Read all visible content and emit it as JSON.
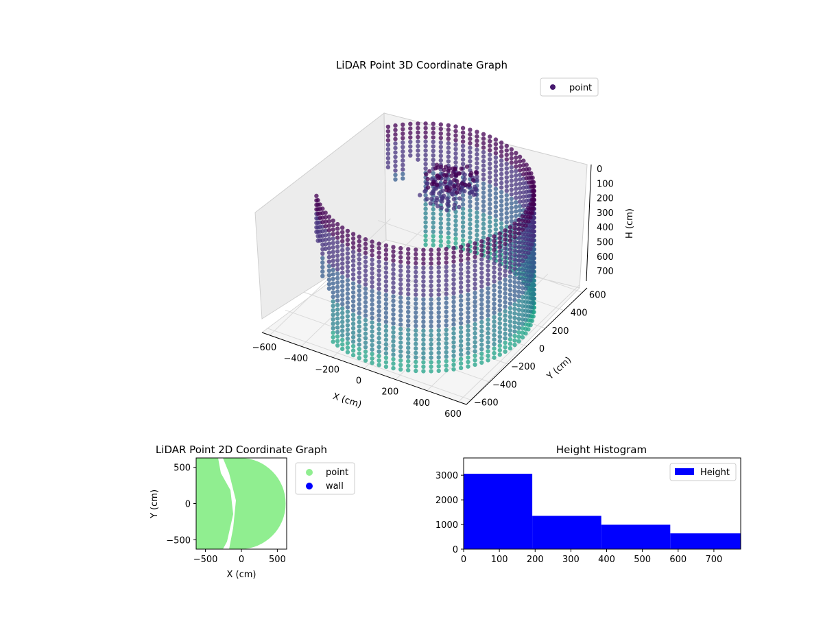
{
  "chart_data": [
    {
      "type": "scatter",
      "projection": "3d",
      "title": "LiDAR Point 3D Coordinate Graph",
      "xlabel": "X (cm)",
      "ylabel": "Y (cm)",
      "zlabel": "H (cm)",
      "xlim": [
        -650,
        650
      ],
      "ylim": [
        -650,
        650
      ],
      "zlim": [
        0,
        770
      ],
      "z_inverted": true,
      "xticks": [
        -600,
        -400,
        -200,
        0,
        200,
        400,
        600
      ],
      "yticks": [
        -600,
        -400,
        -200,
        0,
        200,
        400,
        600
      ],
      "zticks": [
        0,
        100,
        200,
        300,
        400,
        500,
        600,
        700
      ],
      "colormap": "viridis",
      "grid": true,
      "legend": {
        "position": "top-right",
        "entries": [
          {
            "label": "point",
            "color": "#46186e"
          }
        ]
      },
      "series": [
        {
          "name": "point",
          "shape": "cylindrical wall, radius ≈ 600 cm, heights 0–770 cm, open toward −X",
          "colors": [
            "#440154",
            "#3b528b",
            "#21918c",
            "#5ec962"
          ]
        }
      ]
    },
    {
      "type": "scatter",
      "title": "LiDAR Point 2D Coordinate Graph",
      "xlabel": "X (cm)",
      "ylabel": "Y (cm)",
      "xlim": [
        -630,
        630
      ],
      "ylim": [
        -630,
        630
      ],
      "xticks": [
        -500,
        0,
        500
      ],
      "yticks": [
        -500,
        0,
        500
      ],
      "legend": {
        "position": "outside-right",
        "entries": [
          {
            "label": "point",
            "color": "#90ee90"
          },
          {
            "label": "wall",
            "color": "#0000ff"
          }
        ]
      },
      "series": [
        {
          "name": "point",
          "color": "#90ee90",
          "points": [
            [
              -500,
              500
            ],
            [
              -460,
              520
            ],
            [
              -450,
              230
            ],
            [
              -370,
              190
            ],
            [
              -350,
              80
            ],
            [
              -560,
              -230
            ],
            [
              -240,
              -230
            ]
          ]
        },
        {
          "name": "wall",
          "color": "#0000ff",
          "points": []
        }
      ]
    },
    {
      "type": "bar",
      "subtype": "histogram",
      "title": "Height Histogram",
      "xlim": [
        0,
        775
      ],
      "ylim": [
        0,
        3700
      ],
      "xticks": [
        0,
        100,
        200,
        300,
        400,
        500,
        600,
        700
      ],
      "yticks": [
        0,
        1000,
        2000,
        3000
      ],
      "legend": {
        "position": "top-right",
        "entries": [
          {
            "label": "Height",
            "color": "#0000ff"
          }
        ]
      },
      "series": [
        {
          "name": "Height",
          "color": "#0000ff",
          "bins": [
            [
              0,
              192
            ],
            [
              192,
              385
            ],
            [
              385,
              578
            ],
            [
              578,
              775
            ]
          ],
          "values": [
            3060,
            1350,
            990,
            640
          ]
        }
      ]
    }
  ]
}
